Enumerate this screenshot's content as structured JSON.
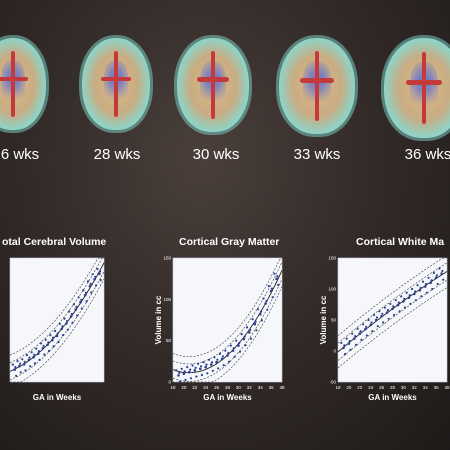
{
  "brains": [
    {
      "label": "6 wks"
    },
    {
      "label": "28 wks"
    },
    {
      "label": "30 wks"
    },
    {
      "label": "33 wks"
    },
    {
      "label": "36 wks"
    }
  ],
  "chart_data": [
    {
      "type": "scatter",
      "title": "otal Cerebral Volume",
      "xlabel": "GA in Weeks",
      "ylabel": "",
      "x_ticks": [
        "",
        "",
        "",
        "",
        "",
        "",
        "",
        "",
        "",
        "",
        ""
      ],
      "y_ticks": [],
      "xlim": [
        20,
        40
      ],
      "ylim": [
        0,
        350
      ],
      "trend": "quadratic",
      "points": [
        [
          21,
          35
        ],
        [
          22,
          45
        ],
        [
          23,
          50
        ],
        [
          24,
          62
        ],
        [
          25,
          70
        ],
        [
          26,
          80
        ],
        [
          27,
          95
        ],
        [
          28,
          105
        ],
        [
          29,
          118
        ],
        [
          30,
          130
        ],
        [
          31,
          150
        ],
        [
          32,
          165
        ],
        [
          33,
          185
        ],
        [
          34,
          205
        ],
        [
          35,
          225
        ],
        [
          36,
          245
        ],
        [
          37,
          270
        ],
        [
          38,
          290
        ],
        [
          39,
          305
        ]
      ]
    },
    {
      "type": "scatter",
      "title": "Cortical Gray Matter",
      "xlabel": "GA in Weeks",
      "ylabel": "Volume in cc",
      "x_ticks": [
        "18",
        "20",
        "22",
        "24",
        "26",
        "28",
        "30",
        "32",
        "34",
        "36",
        "38"
      ],
      "y_ticks": [
        "150",
        "100",
        "50",
        "0"
      ],
      "xlim": [
        18,
        38
      ],
      "ylim": [
        0,
        150
      ],
      "trend": "quadratic",
      "points": [
        [
          19,
          8
        ],
        [
          20,
          10
        ],
        [
          21,
          12
        ],
        [
          22,
          14
        ],
        [
          23,
          16
        ],
        [
          24,
          18
        ],
        [
          25,
          21
        ],
        [
          26,
          24
        ],
        [
          27,
          28
        ],
        [
          28,
          32
        ],
        [
          29,
          38
        ],
        [
          30,
          44
        ],
        [
          31,
          52
        ],
        [
          32,
          60
        ],
        [
          33,
          70
        ],
        [
          34,
          82
        ],
        [
          35,
          95
        ],
        [
          36,
          110
        ],
        [
          37,
          125
        ]
      ]
    },
    {
      "type": "scatter",
      "title": "Cortical White Ma",
      "xlabel": "GA in Weeks",
      "ylabel": "Volume in cc",
      "x_ticks": [
        "18",
        "20",
        "22",
        "24",
        "26",
        "28",
        "30",
        "32",
        "34",
        "36",
        "38"
      ],
      "y_ticks": [
        "150",
        "100",
        "50",
        "0",
        "-50"
      ],
      "xlim": [
        18,
        38
      ],
      "ylim": [
        -50,
        150
      ],
      "trend": "quadratic",
      "points": [
        [
          19,
          5
        ],
        [
          20,
          12
        ],
        [
          21,
          20
        ],
        [
          22,
          28
        ],
        [
          23,
          35
        ],
        [
          24,
          42
        ],
        [
          25,
          50
        ],
        [
          26,
          56
        ],
        [
          27,
          62
        ],
        [
          28,
          68
        ],
        [
          29,
          74
        ],
        [
          30,
          80
        ],
        [
          31,
          86
        ],
        [
          32,
          92
        ],
        [
          33,
          98
        ],
        [
          34,
          104
        ],
        [
          35,
          110
        ],
        [
          36,
          118
        ],
        [
          37,
          125
        ]
      ]
    }
  ]
}
